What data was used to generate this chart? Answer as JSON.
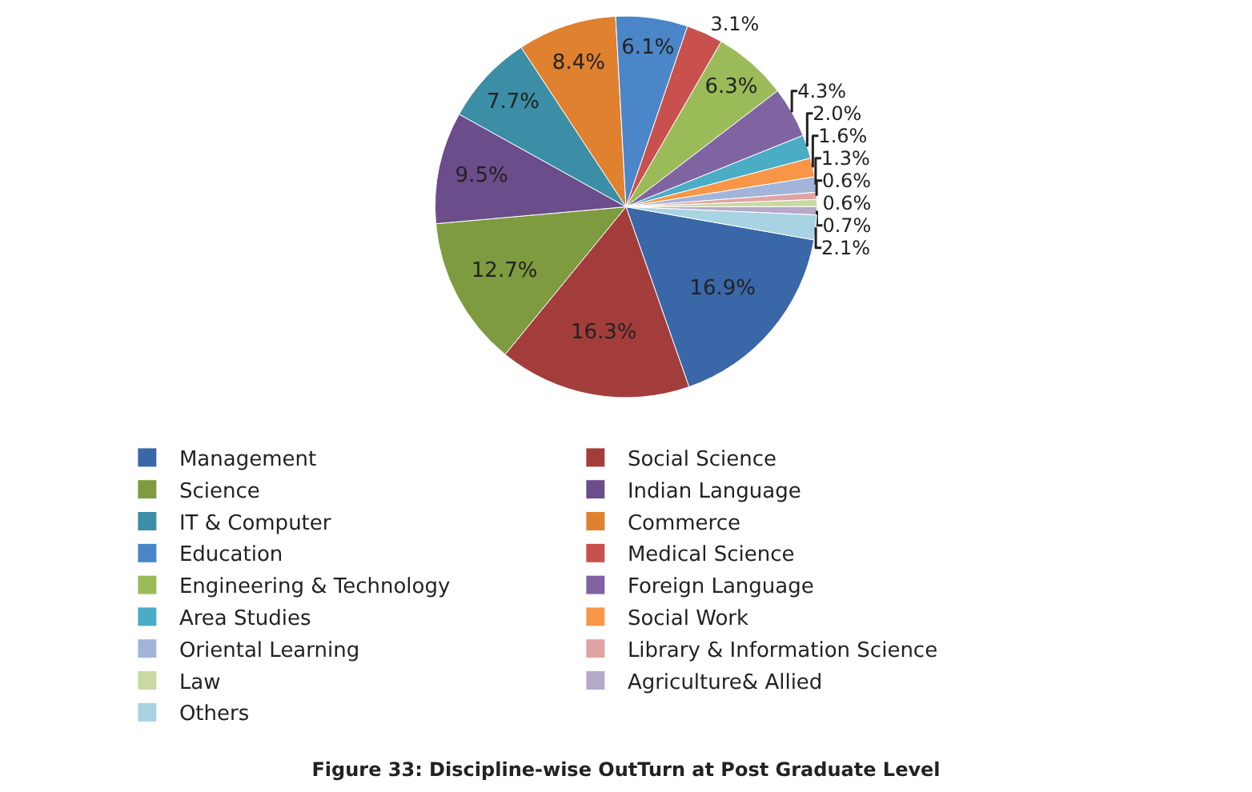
{
  "chart_data": {
    "type": "pie",
    "title": "Figure 33: Discipline-wise OutTurn at Post Graduate Level",
    "categories": [
      "Management",
      "Social Science",
      "Science",
      "Indian Language",
      "IT & Computer",
      "Commerce",
      "Education",
      "Medical Science",
      "Engineering & Technology",
      "Foreign Language",
      "Area Studies",
      "Social Work",
      "Oriental Learning",
      "Library & Information Science",
      "Law",
      "Agriculture& Allied",
      "Others"
    ],
    "values": [
      16.9,
      16.3,
      12.7,
      9.5,
      7.7,
      8.4,
      6.1,
      3.1,
      6.3,
      4.3,
      2.0,
      1.6,
      1.3,
      0.6,
      0.6,
      0.7,
      2.1
    ],
    "value_labels": [
      "16.9%",
      "16.3%",
      "12.7%",
      "9.5%",
      "7.7%",
      "8.4%",
      "6.1%",
      "3.1%",
      "6.3%",
      "4.3%",
      "2.0%",
      "1.6%",
      "1.3%",
      "0.6%",
      "0.6%",
      "0.7%",
      "2.1%"
    ],
    "colors": [
      "#3a67a8",
      "#a33d3b",
      "#7e9b3f",
      "#6a4d8a",
      "#3b8ea6",
      "#df812f",
      "#4a86c8",
      "#c8504d",
      "#9bbb59",
      "#8064a2",
      "#4bacc6",
      "#f79646",
      "#a3b4da",
      "#dea4a3",
      "#c9d9a2",
      "#b6a8ca",
      "#a7d3e2"
    ],
    "legend": "bottom"
  }
}
